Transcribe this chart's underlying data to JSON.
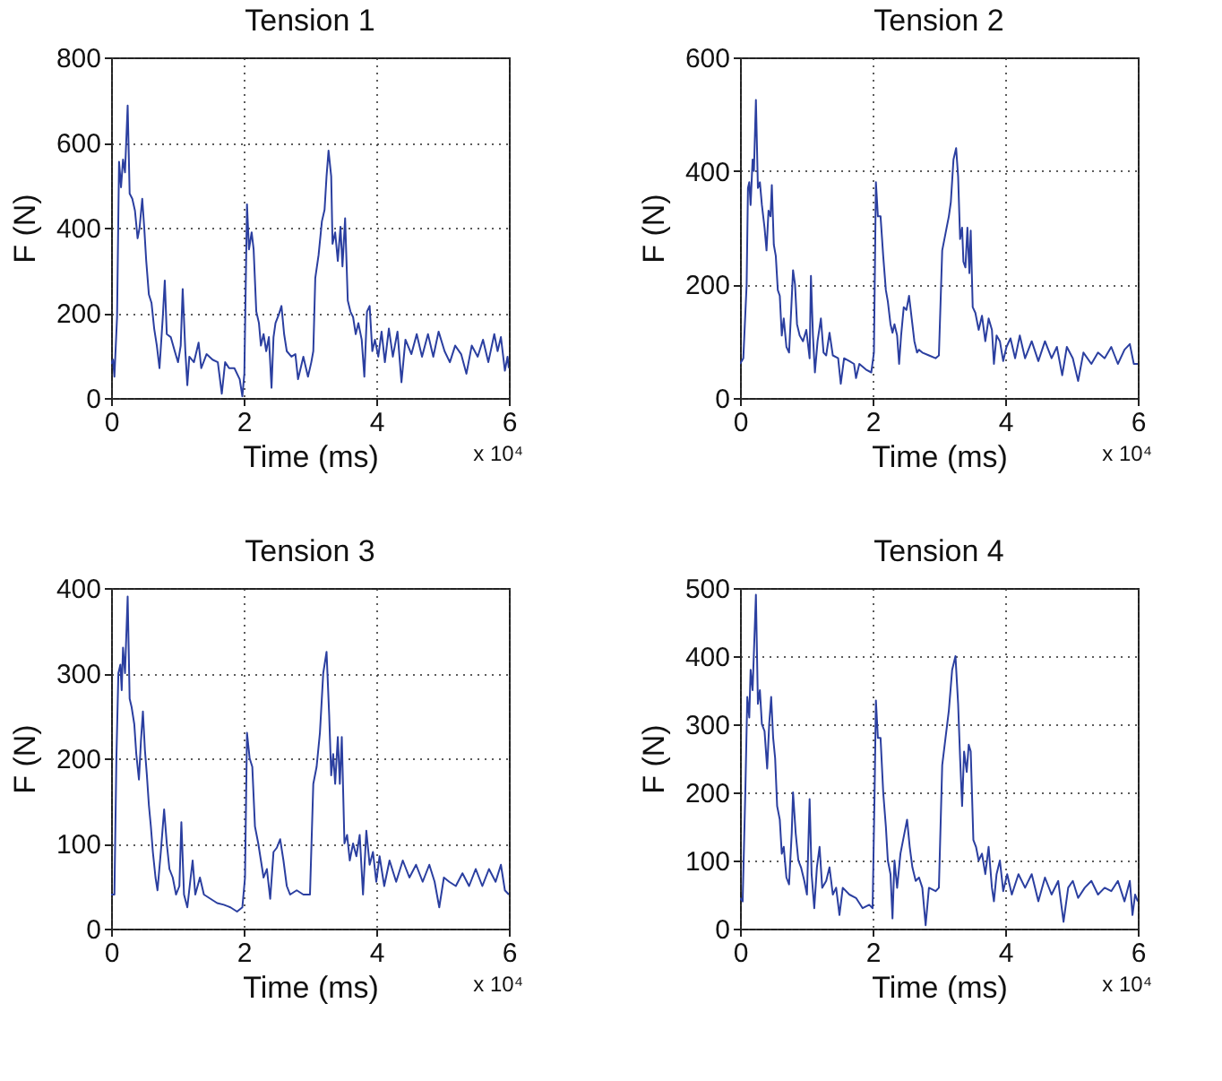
{
  "chart_data": [
    {
      "type": "line",
      "title": "Tension 1",
      "xlabel": "Time (ms)",
      "ylabel": "F (N)",
      "annotations": [
        "x 10⁴"
      ],
      "xlim": [
        0,
        6
      ],
      "xticks": [
        0,
        2,
        4,
        6
      ],
      "ylim": [
        0,
        800
      ],
      "yticks": [
        0,
        200,
        400,
        600,
        800
      ],
      "grid": true,
      "x": [
        0,
        0.03,
        0.05,
        0.09,
        0.12,
        0.15,
        0.18,
        0.21,
        0.25,
        0.28,
        0.32,
        0.36,
        0.4,
        0.43,
        0.47,
        0.5,
        0.53,
        0.57,
        0.61,
        0.65,
        0.69,
        0.73,
        0.78,
        0.81,
        0.84,
        0.9,
        0.96,
        1.01,
        1.05,
        1.08,
        1.12,
        1.15,
        1.18,
        1.25,
        1.32,
        1.36,
        1.44,
        1.53,
        1.61,
        1.67,
        1.72,
        1.78,
        1.86,
        1.94,
        1.98,
        2.01,
        2.05,
        2.08,
        2.12,
        2.15,
        2.19,
        2.23,
        2.26,
        2.3,
        2.34,
        2.38,
        2.42,
        2.45,
        2.48,
        2.53,
        2.57,
        2.61,
        2.65,
        2.72,
        2.78,
        2.82,
        2.9,
        2.97,
        3.02,
        3.05,
        3.08,
        3.13,
        3.18,
        3.22,
        3.25,
        3.28,
        3.32,
        3.34,
        3.38,
        3.42,
        3.46,
        3.49,
        3.53,
        3.57,
        3.61,
        3.65,
        3.69,
        3.73,
        3.78,
        3.82,
        3.86,
        3.9,
        3.94,
        3.98,
        4.03,
        4.08,
        4.13,
        4.19,
        4.25,
        4.32,
        4.38,
        4.44,
        4.53,
        4.61,
        4.69,
        4.78,
        4.86,
        4.94,
        5.03,
        5.11,
        5.19,
        5.28,
        5.36,
        5.44,
        5.53,
        5.61,
        5.69,
        5.78,
        5.83,
        5.88,
        5.94,
        5.98,
        6
      ],
      "series": [
        {
          "color": "#2b3fa0",
          "values": [
            80,
            90,
            50,
            190,
            555,
            495,
            560,
            530,
            687,
            480,
            468,
            440,
            375,
            400,
            468,
            400,
            322,
            243,
            223,
            163,
            123,
            70,
            190,
            276,
            150,
            143,
            110,
            84,
            123,
            256,
            110,
            30,
            97,
            84,
            130,
            70,
            103,
            90,
            84,
            10,
            84,
            70,
            70,
            44,
            4,
            57,
            455,
            349,
            389,
            349,
            203,
            176,
            123,
            150,
            110,
            143,
            24,
            143,
            176,
            196,
            216,
            150,
            110,
            97,
            103,
            44,
            97,
            50,
            84,
            110,
            282,
            336,
            415,
            442,
            521,
            581,
            521,
            362,
            389,
            322,
            402,
            309,
            422,
            229,
            203,
            190,
            150,
            176,
            137,
            50,
            203,
            216,
            110,
            137,
            97,
            156,
            84,
            163,
            97,
            156,
            37,
            137,
            103,
            150,
            97,
            150,
            97,
            156,
            110,
            84,
            123,
            103,
            57,
            123,
            97,
            137,
            84,
            150,
            110,
            143,
            64,
            97,
            70
          ]
        }
      ]
    },
    {
      "type": "line",
      "title": "Tension 2",
      "xlabel": "Time (ms)",
      "ylabel": "F (N)",
      "annotations": [
        "x 10⁴"
      ],
      "xlim": [
        0,
        6
      ],
      "xticks": [
        0,
        2,
        4,
        6
      ],
      "ylim": [
        0,
        600
      ],
      "yticks": [
        0,
        200,
        400,
        600
      ],
      "grid": true,
      "x": [
        0,
        0.05,
        0.1,
        0.12,
        0.14,
        0.16,
        0.19,
        0.21,
        0.24,
        0.27,
        0.3,
        0.33,
        0.37,
        0.4,
        0.43,
        0.46,
        0.48,
        0.51,
        0.54,
        0.57,
        0.6,
        0.63,
        0.66,
        0.7,
        0.74,
        0.77,
        0.8,
        0.83,
        0.86,
        0.9,
        0.95,
        1.0,
        1.05,
        1.07,
        1.1,
        1.13,
        1.17,
        1.22,
        1.26,
        1.3,
        1.35,
        1.4,
        1.48,
        1.52,
        1.57,
        1.65,
        1.72,
        1.75,
        1.8,
        1.9,
        1.98,
        2.02,
        2.05,
        2.08,
        2.12,
        2.16,
        2.2,
        2.23,
        2.27,
        2.3,
        2.33,
        2.37,
        2.4,
        2.43,
        2.47,
        2.51,
        2.55,
        2.59,
        2.63,
        2.67,
        2.7,
        2.75,
        2.85,
        2.95,
        3.0,
        3.05,
        3.1,
        3.15,
        3.18,
        3.22,
        3.26,
        3.29,
        3.32,
        3.35,
        3.37,
        3.4,
        3.43,
        3.46,
        3.48,
        3.51,
        3.55,
        3.6,
        3.65,
        3.7,
        3.75,
        3.8,
        3.83,
        3.87,
        3.92,
        3.97,
        4.02,
        4.08,
        4.15,
        4.22,
        4.3,
        4.4,
        4.5,
        4.6,
        4.7,
        4.78,
        4.86,
        4.93,
        5.02,
        5.1,
        5.18,
        5.3,
        5.4,
        5.5,
        5.6,
        5.7,
        5.8,
        5.88,
        5.94,
        6
      ],
      "series": [
        {
          "color": "#2b3fa0",
          "values": [
            60,
            70,
            200,
            370,
            380,
            340,
            420,
            400,
            525,
            370,
            380,
            340,
            300,
            260,
            330,
            320,
            375,
            270,
            250,
            190,
            180,
            110,
            140,
            90,
            80,
            150,
            225,
            200,
            130,
            110,
            100,
            120,
            70,
            215,
            110,
            45,
            100,
            140,
            80,
            75,
            115,
            75,
            70,
            25,
            70,
            65,
            60,
            35,
            60,
            50,
            45,
            80,
            380,
            320,
            320,
            250,
            190,
            170,
            130,
            115,
            130,
            110,
            60,
            110,
            160,
            155,
            180,
            140,
            100,
            80,
            85,
            80,
            75,
            70,
            75,
            260,
            290,
            320,
            345,
            420,
            440,
            390,
            280,
            300,
            240,
            230,
            300,
            220,
            295,
            160,
            150,
            120,
            145,
            100,
            140,
            120,
            60,
            110,
            100,
            65,
            90,
            105,
            70,
            110,
            70,
            100,
            65,
            100,
            70,
            90,
            40,
            90,
            70,
            30,
            80,
            60,
            80,
            70,
            90,
            60,
            85,
            95,
            60,
            60
          ]
        }
      ]
    },
    {
      "type": "line",
      "title": "Tension 3",
      "xlabel": "Time (ms)",
      "ylabel": "F (N)",
      "annotations": [
        "x 10⁴"
      ],
      "xlim": [
        0,
        6
      ],
      "xticks": [
        0,
        2,
        4,
        6
      ],
      "ylim": [
        0,
        400
      ],
      "yticks": [
        0,
        100,
        200,
        300,
        400
      ],
      "grid": true,
      "x": [
        0,
        0.05,
        0.08,
        0.11,
        0.14,
        0.16,
        0.18,
        0.21,
        0.25,
        0.28,
        0.31,
        0.35,
        0.38,
        0.42,
        0.45,
        0.48,
        0.51,
        0.54,
        0.57,
        0.6,
        0.63,
        0.67,
        0.7,
        0.75,
        0.8,
        0.84,
        0.88,
        0.93,
        0.98,
        1.03,
        1.06,
        1.1,
        1.15,
        1.2,
        1.23,
        1.27,
        1.34,
        1.4,
        1.5,
        1.6,
        1.7,
        1.8,
        1.9,
        1.98,
        2.02,
        2.05,
        2.09,
        2.13,
        2.17,
        2.22,
        2.26,
        2.3,
        2.35,
        2.4,
        2.45,
        2.5,
        2.55,
        2.6,
        2.65,
        2.7,
        2.8,
        2.9,
        3.0,
        3.05,
        3.1,
        3.15,
        3.2,
        3.25,
        3.29,
        3.32,
        3.35,
        3.38,
        3.42,
        3.45,
        3.48,
        3.52,
        3.56,
        3.6,
        3.65,
        3.7,
        3.75,
        3.8,
        3.85,
        3.9,
        3.95,
        4.0,
        4.05,
        4.12,
        4.2,
        4.3,
        4.4,
        4.5,
        4.6,
        4.7,
        4.8,
        4.88,
        4.95,
        5.02,
        5.1,
        5.2,
        5.3,
        5.4,
        5.5,
        5.6,
        5.7,
        5.8,
        5.88,
        5.94,
        6
      ],
      "series": [
        {
          "color": "#2b3fa0",
          "values": [
            40,
            40,
            200,
            300,
            310,
            280,
            330,
            300,
            390,
            270,
            260,
            240,
            205,
            175,
            220,
            255,
            210,
            180,
            145,
            120,
            90,
            60,
            45,
            90,
            140,
            100,
            70,
            60,
            40,
            50,
            125,
            40,
            25,
            60,
            80,
            40,
            60,
            40,
            35,
            30,
            28,
            25,
            20,
            25,
            60,
            230,
            200,
            190,
            120,
            100,
            80,
            60,
            70,
            35,
            90,
            95,
            105,
            80,
            50,
            40,
            45,
            40,
            40,
            170,
            190,
            230,
            300,
            325,
            250,
            180,
            205,
            170,
            225,
            170,
            225,
            100,
            110,
            80,
            100,
            85,
            110,
            40,
            115,
            75,
            90,
            55,
            85,
            50,
            80,
            55,
            80,
            60,
            75,
            55,
            75,
            55,
            25,
            60,
            55,
            50,
            65,
            50,
            70,
            50,
            70,
            55,
            75,
            45,
            40
          ]
        }
      ]
    },
    {
      "type": "line",
      "title": "Tension 4",
      "xlabel": "Time (ms)",
      "ylabel": "F (N)",
      "annotations": [
        "x 10⁴"
      ],
      "xlim": [
        0,
        6
      ],
      "xticks": [
        0,
        2,
        4,
        6
      ],
      "ylim": [
        0,
        500
      ],
      "yticks": [
        0,
        100,
        200,
        300,
        400,
        500
      ],
      "grid": true,
      "x": [
        0,
        0.04,
        0.08,
        0.11,
        0.14,
        0.16,
        0.19,
        0.24,
        0.27,
        0.3,
        0.33,
        0.37,
        0.41,
        0.44,
        0.47,
        0.5,
        0.53,
        0.56,
        0.6,
        0.63,
        0.66,
        0.7,
        0.74,
        0.78,
        0.8,
        0.84,
        0.88,
        0.92,
        0.97,
        1.01,
        1.05,
        1.08,
        1.12,
        1.16,
        1.2,
        1.24,
        1.3,
        1.35,
        1.4,
        1.45,
        1.5,
        1.55,
        1.65,
        1.75,
        1.85,
        1.95,
        2.0,
        2.03,
        2.05,
        2.08,
        2.12,
        2.16,
        2.2,
        2.23,
        2.27,
        2.3,
        2.33,
        2.37,
        2.42,
        2.47,
        2.52,
        2.56,
        2.6,
        2.65,
        2.7,
        2.75,
        2.8,
        2.85,
        2.95,
        3.0,
        3.05,
        3.1,
        3.15,
        3.2,
        3.25,
        3.29,
        3.32,
        3.35,
        3.38,
        3.42,
        3.45,
        3.48,
        3.52,
        3.56,
        3.6,
        3.65,
        3.7,
        3.75,
        3.8,
        3.83,
        3.87,
        3.92,
        3.97,
        4.03,
        4.1,
        4.2,
        4.3,
        4.4,
        4.5,
        4.6,
        4.7,
        4.8,
        4.88,
        4.95,
        5.02,
        5.1,
        5.2,
        5.3,
        5.4,
        5.5,
        5.6,
        5.7,
        5.8,
        5.88,
        5.92,
        5.96,
        6
      ],
      "series": [
        {
          "color": "#2b3fa0",
          "values": [
            45,
            40,
            200,
            340,
            310,
            380,
            350,
            490,
            330,
            350,
            300,
            290,
            235,
            300,
            340,
            280,
            250,
            180,
            160,
            110,
            120,
            75,
            65,
            140,
            200,
            140,
            100,
            90,
            70,
            50,
            190,
            80,
            30,
            90,
            120,
            60,
            70,
            90,
            50,
            60,
            20,
            60,
            50,
            45,
            30,
            35,
            30,
            200,
            335,
            280,
            280,
            200,
            150,
            100,
            80,
            15,
            100,
            60,
            110,
            135,
            160,
            120,
            90,
            70,
            75,
            60,
            5,
            60,
            55,
            60,
            240,
            280,
            320,
            380,
            400,
            330,
            250,
            180,
            260,
            230,
            270,
            260,
            130,
            120,
            100,
            110,
            80,
            120,
            60,
            40,
            80,
            100,
            55,
            80,
            50,
            80,
            60,
            80,
            40,
            75,
            50,
            70,
            10,
            60,
            70,
            45,
            60,
            70,
            50,
            60,
            55,
            70,
            40,
            70,
            20,
            50,
            40
          ]
        }
      ]
    }
  ]
}
